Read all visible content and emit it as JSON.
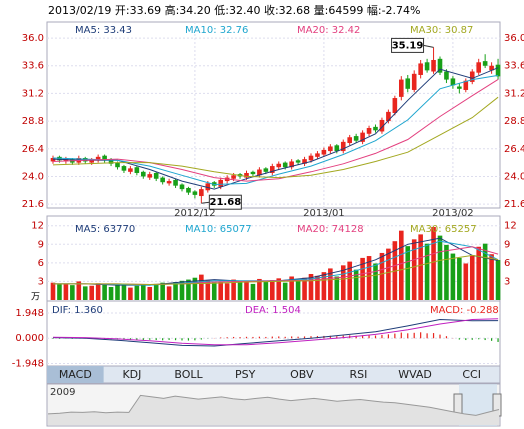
{
  "header": {
    "title": "2013/02/19 开:33.69 高:34.20 低:32.40 收:32.68 量:64599 幅:-2.74%"
  },
  "chart_data": [
    {
      "type": "candlestick",
      "up_color": "#e8251e",
      "down_color": "#18a018",
      "categories": [
        null,
        null,
        null,
        null,
        null,
        null,
        null,
        null,
        null,
        null,
        null,
        null,
        null,
        null,
        null,
        null,
        null,
        null,
        null,
        null,
        null,
        null,
        "2012/12",
        null,
        null,
        null,
        null,
        null,
        null,
        null,
        null,
        null,
        null,
        null,
        null,
        null,
        null,
        null,
        null,
        null,
        null,
        null,
        "2013/01",
        null,
        null,
        null,
        null,
        null,
        null,
        null,
        null,
        null,
        null,
        null,
        null,
        null,
        null,
        null,
        null,
        null,
        null,
        null,
        "2013/02",
        null,
        null,
        null,
        null,
        null,
        null,
        null
      ],
      "open": [
        25.3,
        25.7,
        25.3,
        25.5,
        25.2,
        25.6,
        25.2,
        25.4,
        25.8,
        25.5,
        25.2,
        24.9,
        24.4,
        24.8,
        24.4,
        23.9,
        24.3,
        23.9,
        23.4,
        23.7,
        23.3,
        23.0,
        22.7,
        22.3,
        22.8,
        23.5,
        23.1,
        23.6,
        23.8,
        24.2,
        23.9,
        24.4,
        24.1,
        24.7,
        24.3,
        24.8,
        25.2,
        24.8,
        25.4,
        25.1,
        25.4,
        25.7,
        25.9,
        26.2,
        26.7,
        26.2,
        26.9,
        27.5,
        27.0,
        27.7,
        28.3,
        27.9,
        28.8,
        29.5,
        30.9,
        32.5,
        31.5,
        32.8,
        33.9,
        33.1,
        34.2,
        33.1,
        32.5,
        31.8,
        31.5,
        32.2,
        33.0,
        34.0,
        33.2,
        33.69
      ],
      "high": [
        25.8,
        25.8,
        25.7,
        25.6,
        25.8,
        25.7,
        25.6,
        25.9,
        25.9,
        25.6,
        25.3,
        25.0,
        24.9,
        24.9,
        24.5,
        24.4,
        24.4,
        24.0,
        23.8,
        23.8,
        23.4,
        23.1,
        22.8,
        23.1,
        23.6,
        23.6,
        23.9,
        24.1,
        24.3,
        24.3,
        24.5,
        24.5,
        24.8,
        24.8,
        25.1,
        25.3,
        25.3,
        25.5,
        25.5,
        25.7,
        26.0,
        26.2,
        26.5,
        26.8,
        26.8,
        27.2,
        27.6,
        27.7,
        28.0,
        28.4,
        28.5,
        29.1,
        29.8,
        31.0,
        32.7,
        32.8,
        33.2,
        34.1,
        34.2,
        35.19,
        34.4,
        33.3,
        32.7,
        32.1,
        32.5,
        33.3,
        34.2,
        34.6,
        33.9,
        34.2
      ],
      "low": [
        25.1,
        25.2,
        25.1,
        25.0,
        25.0,
        25.1,
        25.0,
        25.2,
        25.2,
        24.9,
        24.6,
        24.3,
        24.2,
        24.1,
        23.8,
        23.7,
        23.6,
        23.3,
        23.2,
        23.0,
        22.7,
        22.4,
        22.1,
        21.68,
        22.6,
        23.0,
        22.9,
        23.4,
        23.6,
        23.8,
        23.7,
        24.0,
        23.9,
        24.2,
        24.1,
        24.6,
        24.6,
        24.6,
        25.0,
        24.9,
        25.2,
        25.5,
        25.7,
        26.0,
        26.0,
        26.0,
        26.7,
        26.9,
        26.8,
        27.5,
        27.8,
        27.7,
        28.6,
        29.3,
        30.6,
        31.3,
        31.3,
        32.5,
        33.0,
        32.9,
        32.8,
        32.1,
        31.6,
        31.2,
        31.3,
        32.0,
        32.8,
        33.4,
        32.9,
        32.4
      ],
      "close": [
        25.6,
        25.4,
        25.5,
        25.2,
        25.6,
        25.3,
        25.5,
        25.7,
        25.4,
        25.1,
        24.8,
        24.5,
        24.7,
        24.3,
        24.0,
        24.2,
        23.8,
        23.5,
        23.6,
        23.2,
        22.9,
        22.6,
        22.4,
        22.9,
        23.4,
        23.2,
        23.7,
        23.9,
        24.1,
        24.0,
        24.3,
        24.2,
        24.6,
        24.4,
        24.9,
        25.1,
        24.8,
        25.3,
        25.2,
        25.5,
        25.8,
        26.0,
        26.3,
        26.6,
        26.2,
        27.0,
        27.4,
        27.1,
        27.8,
        28.2,
        28.0,
        28.9,
        29.6,
        30.8,
        32.4,
        31.6,
        32.9,
        33.8,
        33.2,
        34.1,
        33.0,
        32.4,
        31.9,
        31.6,
        32.3,
        33.1,
        33.9,
        33.6,
        33.6,
        32.68
      ],
      "lines": [
        {
          "name": "MA5: 33.43",
          "color": "#1e3c78",
          "x": [
            0,
            5,
            10,
            15,
            20,
            25,
            30,
            35,
            40,
            45,
            50,
            55,
            60,
            65,
            69
          ],
          "values": [
            25.5,
            25.4,
            25.4,
            24.6,
            23.6,
            22.9,
            23.8,
            24.6,
            25.3,
            26.4,
            27.7,
            30.6,
            33.3,
            32.5,
            33.43
          ]
        },
        {
          "name": "MA10: 32.76",
          "color": "#1fa6cf",
          "x": [
            0,
            5,
            10,
            15,
            20,
            25,
            30,
            35,
            40,
            45,
            50,
            55,
            60,
            65,
            69
          ],
          "values": [
            25.6,
            25.5,
            25.4,
            24.9,
            24.1,
            23.3,
            23.4,
            24.2,
            24.9,
            25.9,
            27.1,
            28.9,
            31.6,
            32.4,
            32.76
          ]
        },
        {
          "name": "MA20: 32.42",
          "color": "#e3407f",
          "x": [
            0,
            5,
            10,
            15,
            20,
            25,
            30,
            35,
            40,
            45,
            50,
            55,
            60,
            65,
            69
          ],
          "values": [
            25.3,
            25.4,
            25.5,
            25.2,
            24.6,
            23.9,
            23.6,
            23.8,
            24.4,
            25.1,
            26.0,
            27.2,
            29.2,
            31.0,
            32.42
          ]
        },
        {
          "name": "MA30: 30.87",
          "color": "#a3a820",
          "x": [
            0,
            5,
            10,
            15,
            20,
            25,
            30,
            35,
            40,
            45,
            50,
            55,
            60,
            65,
            69
          ],
          "values": [
            25.0,
            25.1,
            25.2,
            25.2,
            24.9,
            24.4,
            24.0,
            23.9,
            24.1,
            24.6,
            25.3,
            26.1,
            27.6,
            29.1,
            30.87
          ]
        }
      ],
      "ylim": [
        21.35,
        36.7
      ],
      "yticks": [
        {
          "value": 36,
          "label": "36.0"
        },
        33.6,
        31.2,
        28.8,
        26.4,
        {
          "value": 24,
          "label": "24.0"
        },
        21.6
      ],
      "annotations": [
        {
          "label": "35.19",
          "x": 59,
          "y": 35.19
        },
        {
          "label": "21.68",
          "x": 23,
          "y": 21.68
        }
      ],
      "grid": true
    },
    {
      "type": "bar",
      "y_unit": "万",
      "values": [
        2.8,
        2.5,
        2.6,
        2.4,
        3.0,
        2.2,
        2.3,
        2.7,
        2.5,
        2.1,
        2.4,
        2.6,
        2.0,
        2.3,
        2.5,
        2.1,
        2.6,
        2.8,
        2.2,
        2.9,
        3.1,
        3.3,
        3.6,
        4.1,
        3.2,
        2.8,
        3.0,
        2.7,
        3.3,
        2.9,
        3.1,
        2.6,
        3.4,
        2.9,
        3.2,
        3.5,
        2.8,
        3.8,
        3.1,
        3.6,
        4.2,
        3.9,
        4.5,
        5.1,
        3.8,
        5.6,
        6.2,
        4.9,
        6.8,
        7.1,
        5.9,
        7.6,
        8.3,
        9.5,
        11.2,
        8.7,
        9.8,
        10.6,
        9.1,
        11.8,
        10.4,
        8.9,
        7.5,
        6.8,
        5.9,
        7.2,
        8.6,
        9.1,
        7.4,
        6.46
      ],
      "lines": [
        {
          "name": "MA5: 63770",
          "color": "#1e3c78",
          "x": [
            0,
            5,
            10,
            15,
            20,
            25,
            30,
            35,
            40,
            45,
            50,
            55,
            60,
            65,
            69
          ],
          "values": [
            2.6,
            2.6,
            2.4,
            2.4,
            2.9,
            3.3,
            3.0,
            3.1,
            3.6,
            4.8,
            6.5,
            9.0,
            10.0,
            7.2,
            6.38
          ]
        },
        {
          "name": "MA10: 65077",
          "color": "#1fa6cf",
          "x": [
            0,
            5,
            10,
            15,
            20,
            25,
            30,
            35,
            40,
            45,
            50,
            55,
            60,
            65,
            69
          ],
          "values": [
            2.6,
            2.6,
            2.5,
            2.4,
            2.7,
            3.1,
            3.1,
            3.1,
            3.4,
            4.2,
            5.6,
            7.8,
            9.5,
            8.6,
            6.51
          ]
        },
        {
          "name": "MA20: 74128",
          "color": "#e3407f",
          "x": [
            0,
            5,
            10,
            15,
            20,
            25,
            30,
            35,
            40,
            45,
            50,
            55,
            60,
            65,
            69
          ],
          "values": [
            2.6,
            2.6,
            2.6,
            2.5,
            2.6,
            2.9,
            3.0,
            3.1,
            3.2,
            3.7,
            4.6,
            6.2,
            7.8,
            8.6,
            7.41
          ]
        },
        {
          "name": "MA30: 65257",
          "color": "#a3a820",
          "x": [
            0,
            5,
            10,
            15,
            20,
            25,
            30,
            35,
            40,
            45,
            50,
            55,
            60,
            65,
            69
          ],
          "values": [
            2.6,
            2.6,
            2.6,
            2.5,
            2.6,
            2.7,
            2.9,
            3.0,
            3.1,
            3.4,
            4.0,
            5.1,
            6.4,
            7.2,
            6.53
          ]
        }
      ],
      "ylim": [
        0,
        12.6
      ],
      "yticks": [
        3,
        6,
        9,
        12
      ],
      "grid": true
    },
    {
      "type": "macd",
      "up_color": "#e8251e",
      "down_color": "#18a018",
      "histogram": {
        "name": "MACD: -0.288",
        "values": [
          -0.05,
          -0.04,
          -0.03,
          -0.04,
          -0.02,
          -0.03,
          -0.05,
          -0.04,
          -0.06,
          -0.08,
          -0.1,
          -0.12,
          -0.1,
          -0.13,
          -0.15,
          -0.12,
          -0.14,
          -0.16,
          -0.13,
          -0.15,
          -0.17,
          -0.18,
          -0.16,
          -0.1,
          -0.02,
          0.02,
          0.06,
          0.08,
          0.1,
          0.09,
          0.11,
          0.1,
          0.12,
          0.1,
          0.13,
          0.14,
          0.11,
          0.14,
          0.12,
          0.14,
          0.16,
          0.17,
          0.18,
          0.19,
          0.15,
          0.2,
          0.22,
          0.19,
          0.23,
          0.24,
          0.21,
          0.26,
          0.3,
          0.36,
          0.44,
          0.38,
          0.42,
          0.46,
          0.38,
          0.4,
          0.28,
          0.16,
          0.02,
          -0.1,
          -0.14,
          -0.12,
          -0.08,
          -0.14,
          -0.2,
          -0.288
        ]
      },
      "lines": [
        {
          "name": "DIF: 1.360",
          "color": "#1e3c78",
          "x": [
            0,
            5,
            10,
            15,
            20,
            25,
            30,
            35,
            40,
            45,
            50,
            55,
            60,
            65,
            69
          ],
          "values": [
            0.05,
            0.0,
            -0.15,
            -0.35,
            -0.55,
            -0.6,
            -0.4,
            -0.2,
            0.0,
            0.25,
            0.5,
            0.95,
            1.45,
            1.35,
            1.36
          ]
        },
        {
          "name": "DEA: 1.504",
          "color": "#c020c0",
          "x": [
            0,
            5,
            10,
            15,
            20,
            25,
            30,
            35,
            40,
            45,
            50,
            55,
            60,
            65,
            69
          ],
          "values": [
            0.08,
            0.05,
            -0.05,
            -0.2,
            -0.38,
            -0.5,
            -0.5,
            -0.35,
            -0.15,
            0.05,
            0.3,
            0.65,
            1.1,
            1.45,
            1.504
          ]
        }
      ],
      "ylim": [
        -2.3,
        2.8
      ],
      "yticks": [
        1.948,
        {
          "value": 0,
          "label": "0.000"
        },
        -1.948
      ]
    },
    {
      "type": "area",
      "label": "2009",
      "color": "#c8c8c8",
      "values": [
        3,
        3.2,
        3.5,
        3.4,
        3.6,
        3.3,
        3.5,
        3.4,
        8,
        7.6,
        7.2,
        7.8,
        7.4,
        7.0,
        7.3,
        7.6,
        7.1,
        6.8,
        7.2,
        7.5,
        7.0,
        6.6,
        6.9,
        7.2,
        6.8,
        6.4,
        6.7,
        6.9,
        6.5,
        6.2,
        6.0,
        5.6,
        5.2,
        4.8,
        4.2,
        3.6,
        3.0,
        2.6,
        3.4,
        4.2
      ],
      "ylim": [
        0,
        10
      ]
    }
  ],
  "tabs": [
    "MACD",
    "KDJ",
    "BOLL",
    "PSY",
    "OBV",
    "RSI",
    "WVAD",
    "CCI"
  ]
}
